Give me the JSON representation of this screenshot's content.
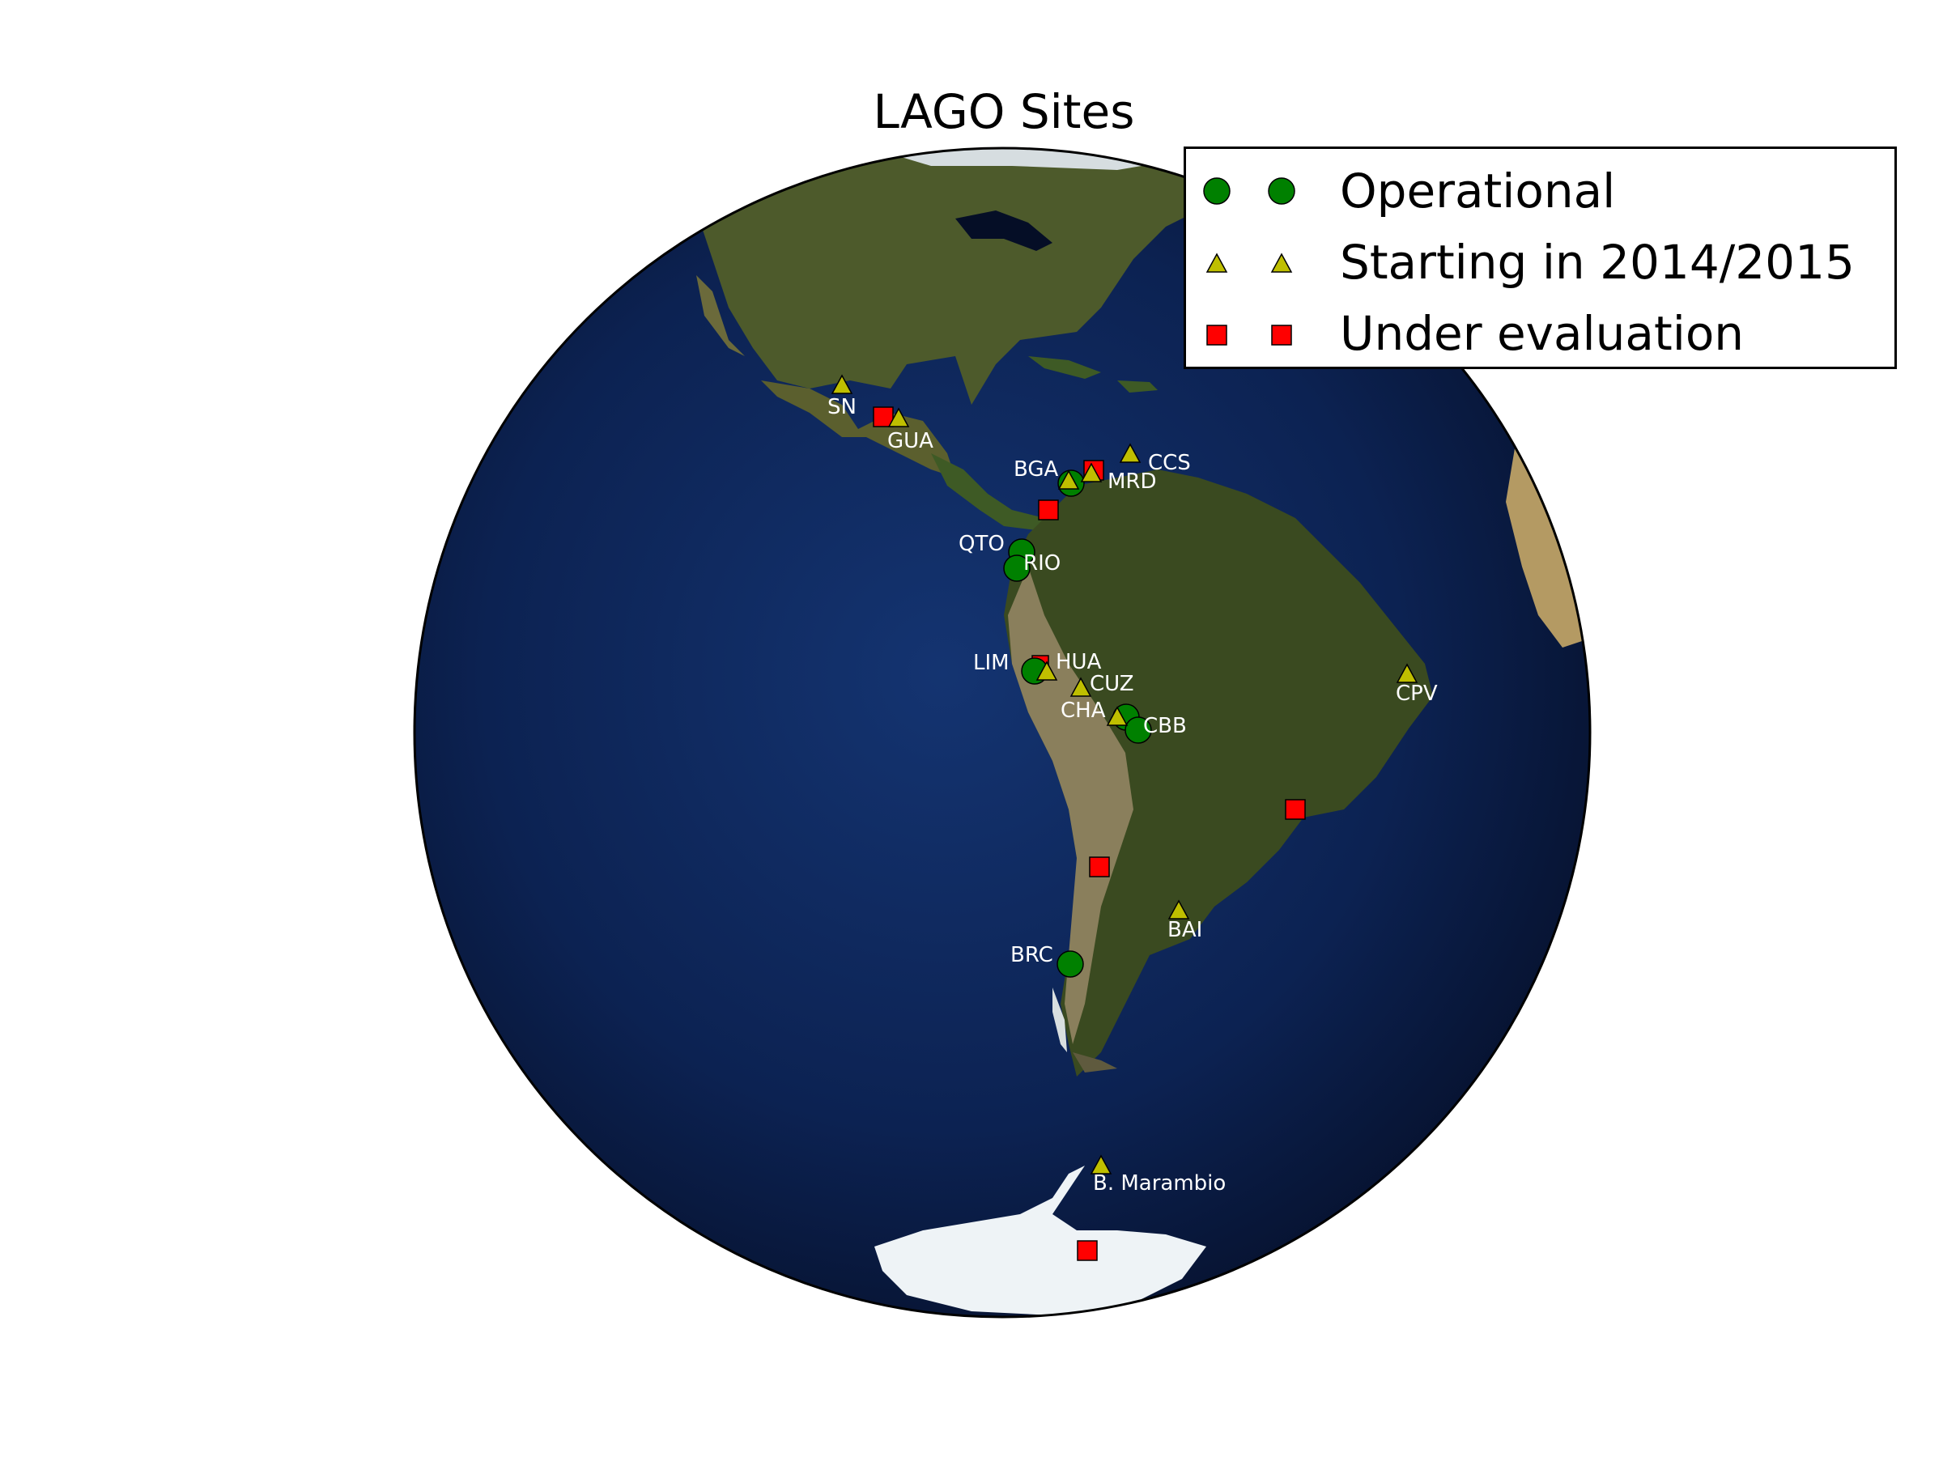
{
  "title": "LAGO Sites",
  "legend": {
    "operational": "Operational",
    "starting": "Starting in 2014/2015",
    "under_evaluation": "Under evaluation"
  },
  "colors": {
    "operational": "#008000",
    "starting": "#bfbf00",
    "under_evaluation": "#ff0000",
    "ocean": "#0a1f4a",
    "land": "#3f4a22",
    "ice": "#f2f6f8"
  },
  "labels": {
    "SN": "SN",
    "GUA": "GUA",
    "BGA": "BGA",
    "CCS": "CCS",
    "MRD": "MRD",
    "QTO": "QTO",
    "RIO": "RIO",
    "LIM": "LIM",
    "HUA": "HUA",
    "CUZ": "CUZ",
    "CHA": "CHA",
    "CBB": "CBB",
    "CPV": "CPV",
    "BAI": "BAI",
    "BRC": "BRC",
    "MARAMBIO": "B. Marambio"
  }
}
